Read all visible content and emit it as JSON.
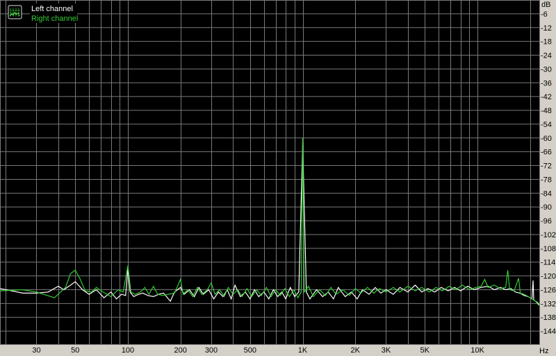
{
  "chart_data": {
    "type": "line",
    "title": "",
    "xlabel": "Hz",
    "ylabel": "dB",
    "x_scale": "log",
    "xlim": [
      18.6,
      22500
    ],
    "ylim": [
      -150,
      0
    ],
    "grid": true,
    "background": "#000000",
    "legend_position": "top-left",
    "x_ticks": [
      "30",
      "50",
      "100",
      "200",
      "300",
      "500",
      "1K",
      "2K",
      "3K",
      "5K",
      "10K"
    ],
    "x_tick_values": [
      30,
      50,
      100,
      200,
      300,
      500,
      1000,
      2000,
      3000,
      5000,
      10000
    ],
    "y_ticks": [
      "-6",
      "-12",
      "-18",
      "-24",
      "-30",
      "-36",
      "-42",
      "-48",
      "-54",
      "-60",
      "-66",
      "-72",
      "-78",
      "-84",
      "-90",
      "-96",
      "-102",
      "-108",
      "-114",
      "-120",
      "-126",
      "-132",
      "-138",
      "-144"
    ],
    "series": [
      {
        "name": "Left channel",
        "color": "#ffffff",
        "points": [
          [
            18.6,
            -125.5
          ],
          [
            25,
            -127.5
          ],
          [
            30,
            -127.5
          ],
          [
            35,
            -127
          ],
          [
            40,
            -124.5
          ],
          [
            43,
            -126
          ],
          [
            47,
            -124
          ],
          [
            50,
            -122.5
          ],
          [
            55,
            -126
          ],
          [
            60,
            -128
          ],
          [
            66,
            -126
          ],
          [
            73,
            -129.5
          ],
          [
            80,
            -127
          ],
          [
            86,
            -130
          ],
          [
            92,
            -128
          ],
          [
            97,
            -128.5
          ],
          [
            100,
            -117
          ],
          [
            103,
            -127
          ],
          [
            108,
            -129
          ],
          [
            115,
            -128
          ],
          [
            122,
            -127.5
          ],
          [
            130,
            -128.5
          ],
          [
            140,
            -129
          ],
          [
            150,
            -128
          ],
          [
            160,
            -127.5
          ],
          [
            175,
            -131
          ],
          [
            185,
            -127
          ],
          [
            200,
            -125
          ],
          [
            210,
            -128
          ],
          [
            225,
            -126
          ],
          [
            240,
            -129
          ],
          [
            255,
            -125
          ],
          [
            270,
            -128
          ],
          [
            290,
            -126
          ],
          [
            310,
            -130
          ],
          [
            330,
            -127
          ],
          [
            350,
            -129
          ],
          [
            370,
            -126
          ],
          [
            390,
            -130
          ],
          [
            410,
            -124
          ],
          [
            440,
            -129
          ],
          [
            470,
            -127
          ],
          [
            500,
            -130
          ],
          [
            530,
            -126
          ],
          [
            560,
            -129
          ],
          [
            600,
            -127
          ],
          [
            640,
            -130
          ],
          [
            680,
            -126
          ],
          [
            720,
            -129
          ],
          [
            760,
            -127
          ],
          [
            800,
            -130
          ],
          [
            850,
            -125
          ],
          [
            900,
            -129
          ],
          [
            950,
            -127
          ],
          [
            1000,
            -62
          ],
          [
            1050,
            -127
          ],
          [
            1100,
            -130
          ],
          [
            1200,
            -126
          ],
          [
            1300,
            -129
          ],
          [
            1400,
            -127
          ],
          [
            1500,
            -130
          ],
          [
            1600,
            -125
          ],
          [
            1750,
            -129
          ],
          [
            1900,
            -127
          ],
          [
            2050,
            -130
          ],
          [
            2200,
            -126
          ],
          [
            2400,
            -128
          ],
          [
            2600,
            -125
          ],
          [
            2800,
            -127.5
          ],
          [
            3000,
            -126
          ],
          [
            3300,
            -128
          ],
          [
            3600,
            -125
          ],
          [
            4000,
            -127
          ],
          [
            4400,
            -124
          ],
          [
            4800,
            -127
          ],
          [
            5200,
            -125.5
          ],
          [
            5700,
            -127
          ],
          [
            6200,
            -125
          ],
          [
            6800,
            -126.5
          ],
          [
            7400,
            -125
          ],
          [
            8000,
            -126.5
          ],
          [
            8800,
            -124.5
          ],
          [
            9600,
            -126
          ],
          [
            10500,
            -125
          ],
          [
            11500,
            -124.5
          ],
          [
            12500,
            -126
          ],
          [
            13500,
            -125
          ],
          [
            14500,
            -126
          ],
          [
            15500,
            -125.5
          ],
          [
            16500,
            -127
          ],
          [
            17500,
            -127.5
          ],
          [
            18500,
            -128.5
          ],
          [
            19500,
            -129
          ],
          [
            20500,
            -130
          ],
          [
            20800,
            -122
          ],
          [
            21000,
            -130.5
          ],
          [
            22000,
            -131.5
          ],
          [
            22500,
            -132.5
          ]
        ]
      },
      {
        "name": "Right channel",
        "color": "#33cc33",
        "points": [
          [
            18.6,
            -126.5
          ],
          [
            25,
            -126
          ],
          [
            30,
            -127
          ],
          [
            38,
            -129.5
          ],
          [
            44,
            -125
          ],
          [
            47,
            -119
          ],
          [
            50,
            -117.5
          ],
          [
            53,
            -121
          ],
          [
            57,
            -126.5
          ],
          [
            62,
            -127
          ],
          [
            66,
            -125
          ],
          [
            72,
            -127
          ],
          [
            80,
            -129
          ],
          [
            88,
            -126
          ],
          [
            94,
            -127
          ],
          [
            100,
            -115.5
          ],
          [
            104,
            -127
          ],
          [
            110,
            -128
          ],
          [
            118,
            -127
          ],
          [
            125,
            -125
          ],
          [
            132,
            -128
          ],
          [
            140,
            -124.5
          ],
          [
            148,
            -128
          ],
          [
            158,
            -128.5
          ],
          [
            170,
            -128
          ],
          [
            185,
            -127.5
          ],
          [
            200,
            -121.5
          ],
          [
            207,
            -128
          ],
          [
            220,
            -126
          ],
          [
            235,
            -129
          ],
          [
            250,
            -125
          ],
          [
            265,
            -128
          ],
          [
            285,
            -126
          ],
          [
            300,
            -123
          ],
          [
            315,
            -128
          ],
          [
            335,
            -126
          ],
          [
            355,
            -129
          ],
          [
            375,
            -125
          ],
          [
            400,
            -128
          ],
          [
            425,
            -126
          ],
          [
            450,
            -129
          ],
          [
            480,
            -125.5
          ],
          [
            510,
            -129
          ],
          [
            545,
            -126
          ],
          [
            580,
            -128.5
          ],
          [
            620,
            -125
          ],
          [
            660,
            -129
          ],
          [
            700,
            -126
          ],
          [
            745,
            -128.5
          ],
          [
            790,
            -125.5
          ],
          [
            840,
            -129
          ],
          [
            890,
            -126
          ],
          [
            940,
            -129.5
          ],
          [
            980,
            -127
          ],
          [
            1000,
            -60
          ],
          [
            1020,
            -127
          ],
          [
            1080,
            -124.5
          ],
          [
            1150,
            -129
          ],
          [
            1250,
            -126
          ],
          [
            1350,
            -128.5
          ],
          [
            1450,
            -125
          ],
          [
            1550,
            -128
          ],
          [
            1700,
            -126
          ],
          [
            1850,
            -128.5
          ],
          [
            2000,
            -125.5
          ],
          [
            2150,
            -127.5
          ],
          [
            2350,
            -125
          ],
          [
            2550,
            -127.5
          ],
          [
            2750,
            -125.5
          ],
          [
            3000,
            -127
          ],
          [
            3300,
            -125
          ],
          [
            3600,
            -127
          ],
          [
            4000,
            -124.5
          ],
          [
            4400,
            -126.5
          ],
          [
            4800,
            -125
          ],
          [
            5300,
            -127
          ],
          [
            5800,
            -125
          ],
          [
            6300,
            -126.5
          ],
          [
            6900,
            -124.5
          ],
          [
            7500,
            -126
          ],
          [
            8200,
            -124
          ],
          [
            9000,
            -126
          ],
          [
            9800,
            -125
          ],
          [
            10500,
            -124.5
          ],
          [
            11000,
            -121.5
          ],
          [
            11500,
            -125
          ],
          [
            12500,
            -124
          ],
          [
            13500,
            -125.5
          ],
          [
            14500,
            -125
          ],
          [
            14900,
            -117.5
          ],
          [
            15300,
            -126
          ],
          [
            16200,
            -126.5
          ],
          [
            17200,
            -121
          ],
          [
            17600,
            -127.5
          ],
          [
            18500,
            -128
          ],
          [
            19500,
            -129
          ],
          [
            20500,
            -130
          ],
          [
            21500,
            -131
          ],
          [
            22500,
            -133
          ]
        ]
      }
    ]
  },
  "legend": {
    "left": "Left channel",
    "right": "Right channel"
  },
  "axis": {
    "y_unit": "dB",
    "x_unit": "Hz"
  },
  "icon": "spectrum-chart-icon"
}
